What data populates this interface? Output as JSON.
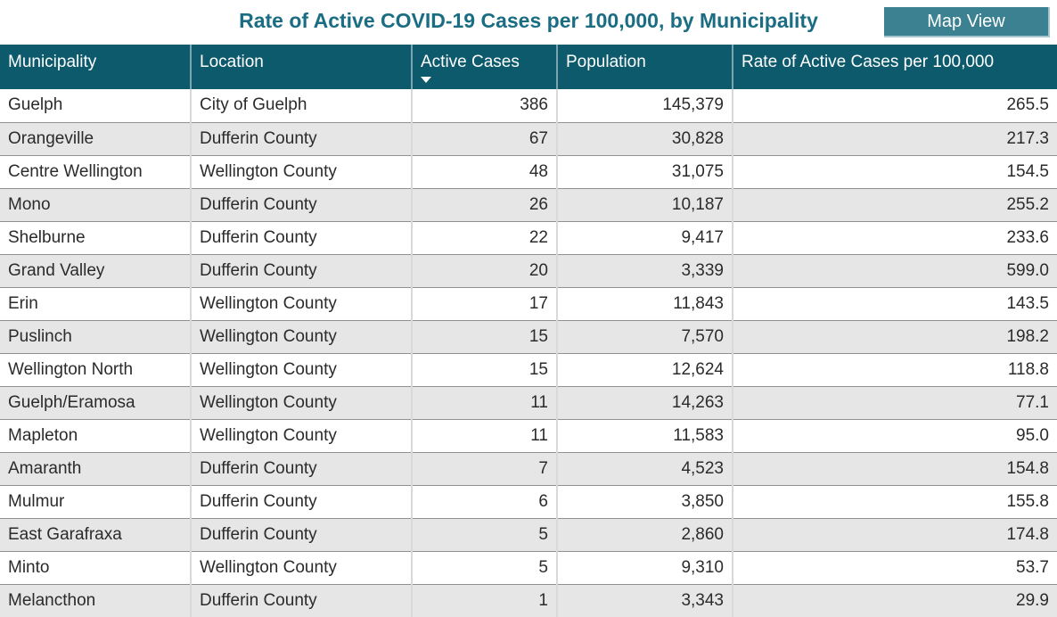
{
  "header": {
    "title": "Rate of Active COVID-19 Cases per 100,000, by Municipality",
    "map_view_label": "Map View"
  },
  "icons": {
    "sort_descending_icon": "triangle-down"
  },
  "colors": {
    "title_text": "#1a6d82",
    "table_header_bg": "#0e5a6d",
    "table_header_text": "#ffffff",
    "map_button_bg": "#3b8191",
    "map_button_text": "#ffffff",
    "row_alt_bg": "#e6e6e6",
    "row_bg": "#ffffff",
    "grid_line": "#909090",
    "body_text": "#2b2b2b"
  },
  "chart_data": {
    "type": "table",
    "title": "Rate of Active COVID-19 Cases per 100,000, by Municipality",
    "sort": {
      "column": "Active Cases",
      "direction": "descending"
    },
    "columns": [
      {
        "label": "Municipality",
        "align": "left"
      },
      {
        "label": "Location",
        "align": "left"
      },
      {
        "label": "Active Cases",
        "align": "right"
      },
      {
        "label": "Population",
        "align": "right"
      },
      {
        "label": "Rate of Active Cases per 100,000",
        "align": "right"
      }
    ],
    "rows": [
      [
        "Guelph",
        "City of Guelph",
        "386",
        "145,379",
        "265.5"
      ],
      [
        "Orangeville",
        "Dufferin County",
        "67",
        "30,828",
        "217.3"
      ],
      [
        "Centre Wellington",
        "Wellington County",
        "48",
        "31,075",
        "154.5"
      ],
      [
        "Mono",
        "Dufferin County",
        "26",
        "10,187",
        "255.2"
      ],
      [
        "Shelburne",
        "Dufferin County",
        "22",
        "9,417",
        "233.6"
      ],
      [
        "Grand Valley",
        "Dufferin County",
        "20",
        "3,339",
        "599.0"
      ],
      [
        "Erin",
        "Wellington County",
        "17",
        "11,843",
        "143.5"
      ],
      [
        "Puslinch",
        "Wellington County",
        "15",
        "7,570",
        "198.2"
      ],
      [
        "Wellington North",
        "Wellington County",
        "15",
        "12,624",
        "118.8"
      ],
      [
        "Guelph/Eramosa",
        "Wellington County",
        "11",
        "14,263",
        "77.1"
      ],
      [
        "Mapleton",
        "Wellington County",
        "11",
        "11,583",
        "95.0"
      ],
      [
        "Amaranth",
        "Dufferin County",
        "7",
        "4,523",
        "154.8"
      ],
      [
        "Mulmur",
        "Dufferin County",
        "6",
        "3,850",
        "155.8"
      ],
      [
        "East Garafraxa",
        "Dufferin County",
        "5",
        "2,860",
        "174.8"
      ],
      [
        "Minto",
        "Wellington County",
        "5",
        "9,310",
        "53.7"
      ],
      [
        "Melancthon",
        "Dufferin County",
        "1",
        "3,343",
        "29.9"
      ]
    ]
  }
}
